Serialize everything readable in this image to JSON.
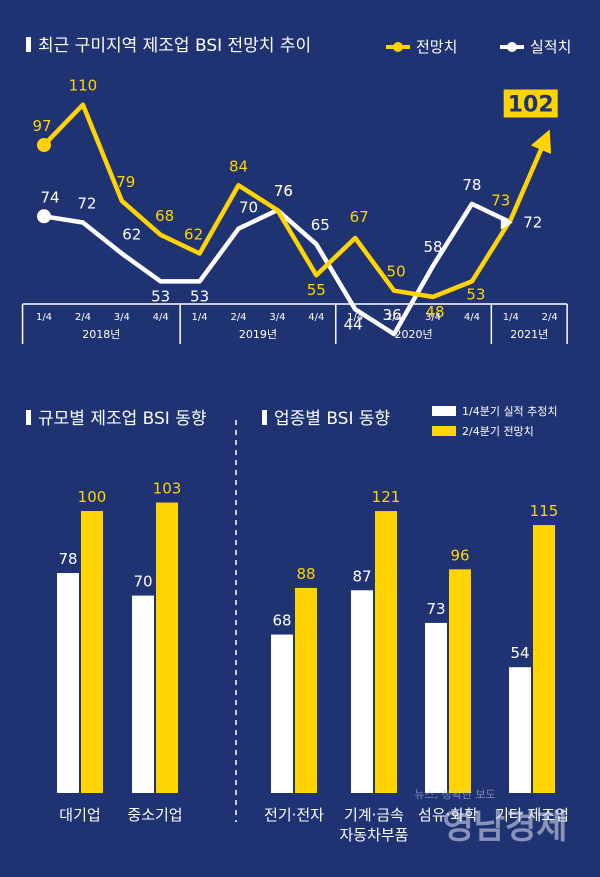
{
  "colors": {
    "background": "#1f3373",
    "yellow": "#ffd400",
    "white": "#ffffff"
  },
  "chart_data": [
    {
      "type": "line",
      "title": "최근 구미지역 제조업 BSI 전망치 추이",
      "legend": [
        "전망치",
        "실적치"
      ],
      "legend_position": "top-right",
      "categories": [
        "1/4",
        "2/4",
        "3/4",
        "4/4",
        "1/4",
        "2/4",
        "3/4",
        "4/4",
        "1/4",
        "2/4",
        "3/4",
        "4/4",
        "1/4",
        "2/4"
      ],
      "years": [
        {
          "label": "2018년",
          "quarters": 4
        },
        {
          "label": "2019년",
          "quarters": 4
        },
        {
          "label": "2020년",
          "quarters": 4
        },
        {
          "label": "2021년",
          "quarters": 2
        }
      ],
      "series": [
        {
          "name": "전망치",
          "color": "#ffd400",
          "values": [
            97,
            110,
            79,
            68,
            62,
            84,
            76,
            55,
            67,
            50,
            48,
            53,
            73,
            102
          ]
        },
        {
          "name": "실적치",
          "color": "#ffffff",
          "values": [
            74,
            72,
            62,
            53,
            53,
            70,
            76,
            65,
            44,
            36,
            58,
            78,
            72,
            null
          ]
        }
      ],
      "highlight_label": "102"
    },
    {
      "type": "bar",
      "title": "규모별 제조업 BSI 동향",
      "categories": [
        "대기업",
        "중소기업"
      ],
      "series": [
        {
          "name": "1/4분기 실적 추정치",
          "color": "#ffffff",
          "values": [
            78,
            70
          ]
        },
        {
          "name": "2/4분기 전망치",
          "color": "#ffd400",
          "values": [
            100,
            103
          ]
        }
      ]
    },
    {
      "type": "bar",
      "title": "업종별 BSI 동향",
      "legend": [
        "1/4분기 실적 추정치",
        "2/4분기 전망치"
      ],
      "legend_position": "top-right",
      "categories": [
        "전기·전자",
        "기계·금속\n자동차부품",
        "섬유·화학",
        "기타 제조업"
      ],
      "series": [
        {
          "name": "1/4분기 실적 추정치",
          "color": "#ffffff",
          "values": [
            68,
            87,
            73,
            54
          ]
        },
        {
          "name": "2/4분기 전망치",
          "color": "#ffd400",
          "values": [
            88,
            121,
            96,
            115
          ]
        }
      ]
    }
  ],
  "watermark": {
    "line1": "영남경제",
    "line2": "뉴스, 정확한 보도"
  }
}
